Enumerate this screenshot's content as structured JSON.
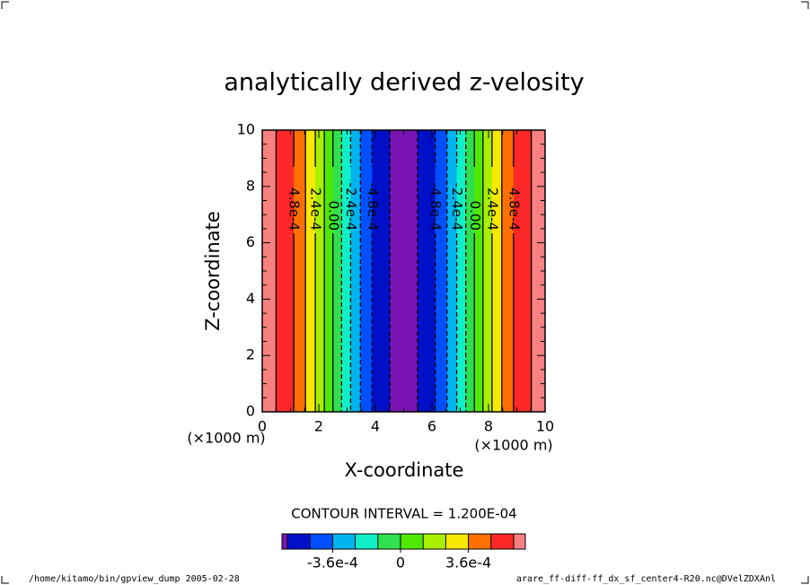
{
  "chart_data": {
    "type": "contour",
    "title": "analytically derived z-velosity",
    "xlabel": "X-coordinate",
    "ylabel": "Z-coordinate",
    "x_unit": "(×1000 m)",
    "y_unit": "(×1000 m)",
    "x": [
      0,
      0.25,
      0.5,
      0.75,
      1,
      1.25,
      1.5,
      1.75,
      2,
      2.25,
      2.5,
      2.75,
      3,
      3.25,
      3.5,
      3.75,
      4,
      4.25,
      4.5,
      4.75,
      5,
      5.25,
      5.5,
      5.75,
      6,
      6.25,
      6.5,
      6.75,
      7,
      7.25,
      7.5,
      7.75,
      8,
      8.25,
      8.5,
      8.75,
      9,
      9.25,
      9.5,
      9.75,
      10
    ],
    "values": [
      0.00063,
      0.000622,
      0.000599,
      0.000561,
      0.00051,
      0.000445,
      0.00037,
      0.000286,
      0.000195,
      9.9e-05,
      0,
      -9.9e-05,
      -0.000195,
      -0.000286,
      -0.00037,
      -0.000445,
      -0.00051,
      -0.000561,
      -0.000599,
      -0.000622,
      -0.00063,
      -0.000622,
      -0.000599,
      -0.000561,
      -0.00051,
      -0.000445,
      -0.00037,
      -0.000286,
      -0.000195,
      -9.9e-05,
      0,
      9.9e-05,
      0.000195,
      0.000286,
      0.00037,
      0.000445,
      0.00051,
      0.000561,
      0.000599,
      0.000622,
      0.00063
    ],
    "xlim": [
      0,
      10
    ],
    "ylim": [
      0,
      10
    ],
    "xticks": [
      0,
      2,
      4,
      6,
      8,
      10
    ],
    "yticks": [
      0,
      2,
      4,
      6,
      8,
      10
    ],
    "levels": [
      -0.0006,
      -0.00048,
      -0.00036,
      -0.00024,
      -0.00012,
      0,
      0.00012,
      0.00024,
      0.00036,
      0.00048,
      0.0006
    ],
    "colors": [
      "#7a14b4",
      "#0010c8",
      "#0050ff",
      "#00b4f0",
      "#10f0c8",
      "#30e050",
      "#50e800",
      "#a8f000",
      "#f8e800",
      "#ff7000",
      "#ff2828",
      "#f88080"
    ],
    "negative_dashed": true,
    "contour_labels": [
      {
        "value": 0.00048,
        "label": "4.8e-4"
      },
      {
        "value": 0.00024,
        "label": "2.4e-4"
      },
      {
        "value": 0,
        "label": "0.00"
      },
      {
        "value": -0.00024,
        "label": "-2.4e-4"
      },
      {
        "value": -0.00048,
        "label": "-4.8e-4"
      }
    ],
    "contour_interval_text": "CONTOUR INTERVAL = 1.200E-04",
    "colorbar_ticks": [
      {
        "value": -0.00036,
        "label": "-3.6e-4"
      },
      0,
      {
        "value": 0.00036,
        "label": "3.6e-4"
      }
    ],
    "footer_left": "/home/kitamo/bin/gpview_dump  2005-02-28",
    "footer_right": "arare_ff-diff-ff_dx_sf_center4-R20.nc@DVelZDXAnl"
  }
}
